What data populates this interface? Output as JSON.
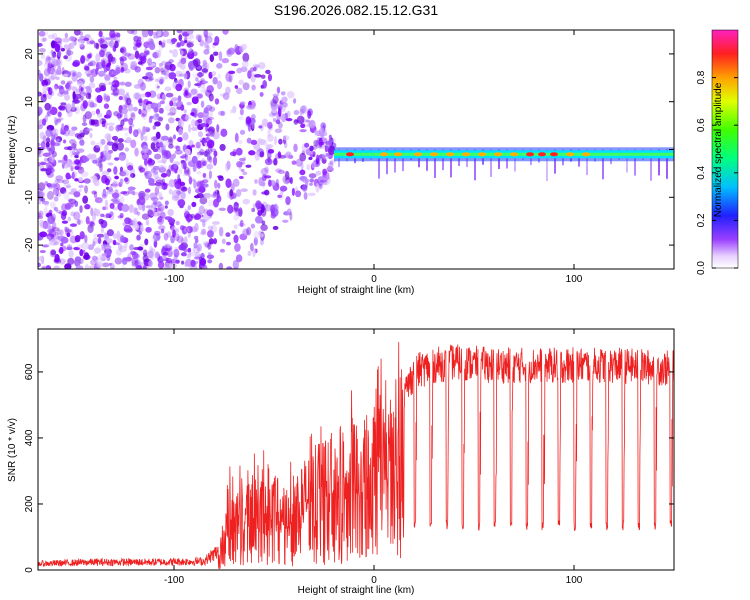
{
  "title": "S196.2026.082.15.12.G31",
  "colors": {
    "noise": "#7f00ff",
    "band_core": "#00e0ff",
    "band_peak": "#ff2020",
    "snr_line": "#ee2020",
    "axis": "#000000"
  },
  "chart_data": [
    {
      "type": "heatmap",
      "title": "S196.2026.082.15.12.G31",
      "xlabel": "Height of straight line (km)",
      "ylabel": "Frequency (Hz)",
      "xlim": [
        -168,
        150
      ],
      "ylim": [
        -25,
        25
      ],
      "xticks": [
        -100,
        0,
        100
      ],
      "yticks": [
        -20,
        -10,
        0,
        10,
        20
      ],
      "description_series": {
        "noise_region_x": [
          -168,
          -80
        ],
        "transition_region_x": [
          -80,
          -20
        ],
        "band_region_x": [
          -20,
          150
        ],
        "band_center_hz": -1
      },
      "colorbar": {
        "label": "Normalized spectral amplitude",
        "range": [
          0,
          1
        ],
        "ticks": [
          "0.0",
          "0.2",
          "0.4",
          "0.6",
          "0.8"
        ]
      }
    },
    {
      "type": "line",
      "xlabel": "Height of straight line (km)",
      "ylabel": "SNR (10 * v/v)",
      "xlim": [
        -168,
        150
      ],
      "ylim": [
        0,
        730
      ],
      "xticks": [
        -100,
        0,
        100
      ],
      "yticks": [
        0,
        200,
        400,
        600
      ],
      "series": [
        {
          "name": "SNR",
          "x": [
            -168,
            -140,
            -110,
            -85,
            -78,
            -72,
            -65,
            -60,
            -55,
            -50,
            -45,
            -40,
            -35,
            -30,
            -25,
            -20,
            -15,
            -10,
            -5,
            0,
            5,
            10,
            15,
            20,
            30,
            40,
            60,
            80,
            100,
            120,
            150
          ],
          "y": [
            20,
            25,
            25,
            28,
            60,
            200,
            220,
            230,
            240,
            230,
            200,
            230,
            260,
            280,
            300,
            330,
            340,
            360,
            360,
            380,
            420,
            430,
            530,
            600,
            620,
            630,
            620,
            620,
            620,
            620,
            610
          ],
          "dip_spacing_km": 8,
          "dip_level": 120
        }
      ]
    }
  ]
}
